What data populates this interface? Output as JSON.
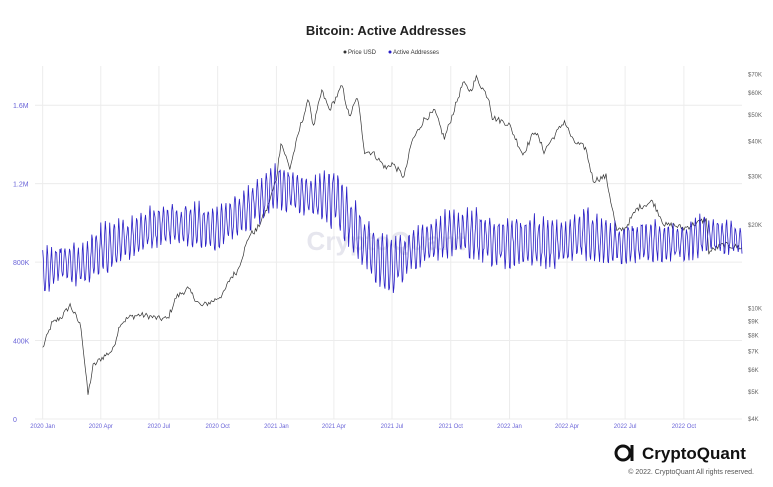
{
  "chart_data": {
    "type": "line",
    "title": "Bitcoin: Active Addresses",
    "legend": [
      {
        "name": "Price USD",
        "color": "#333333"
      },
      {
        "name": "Active Addresses",
        "color": "#2a1fc6"
      }
    ],
    "legend_position": "top-center",
    "grid": true,
    "x_ticks": [
      "2020 Jan",
      "2020 Apr",
      "2020 Jul",
      "2020 Oct",
      "2021 Jan",
      "2021 Apr",
      "2021 Jul",
      "2021 Oct",
      "2022 Jan",
      "2022 Apr",
      "2022 Jul",
      "2022 Oct"
    ],
    "y_left_ticks": [
      "0",
      "400K",
      "800K",
      "1.2M",
      "1.6M"
    ],
    "y_left_range": [
      0,
      1800000
    ],
    "y_right_ticks": [
      "$70K",
      "$60K",
      "$50K",
      "$40K",
      "$30K",
      "$20K",
      "$10K",
      "$9K",
      "$8K",
      "$7K",
      "$6K",
      "$5K",
      "$4K"
    ],
    "y_right_scale": "log",
    "y_right_range": [
      4000,
      75000
    ],
    "x_range": [
      "2019-12-20",
      "2022-12-31"
    ],
    "series": [
      {
        "name": "Price USD",
        "axis": "right",
        "color": "#333333",
        "points": [
          [
            "2020-01-01",
            7200
          ],
          [
            "2020-01-15",
            8800
          ],
          [
            "2020-02-01",
            9400
          ],
          [
            "2020-02-13",
            10300
          ],
          [
            "2020-03-01",
            8600
          ],
          [
            "2020-03-12",
            4900
          ],
          [
            "2020-03-20",
            6200
          ],
          [
            "2020-04-01",
            6600
          ],
          [
            "2020-04-20",
            7100
          ],
          [
            "2020-05-01",
            8800
          ],
          [
            "2020-05-15",
            9300
          ],
          [
            "2020-06-01",
            9500
          ],
          [
            "2020-06-15",
            9400
          ],
          [
            "2020-07-01",
            9200
          ],
          [
            "2020-07-15",
            9200
          ],
          [
            "2020-07-28",
            11000
          ],
          [
            "2020-08-15",
            11800
          ],
          [
            "2020-09-05",
            10200
          ],
          [
            "2020-09-25",
            10700
          ],
          [
            "2020-10-10",
            11300
          ],
          [
            "2020-10-21",
            12900
          ],
          [
            "2020-11-01",
            13700
          ],
          [
            "2020-11-20",
            18500
          ],
          [
            "2020-12-01",
            19200
          ],
          [
            "2020-12-17",
            22800
          ],
          [
            "2021-01-01",
            29300
          ],
          [
            "2021-01-08",
            40000
          ],
          [
            "2021-01-22",
            32000
          ],
          [
            "2021-02-08",
            46000
          ],
          [
            "2021-02-21",
            57000
          ],
          [
            "2021-02-28",
            45000
          ],
          [
            "2021-03-13",
            61000
          ],
          [
            "2021-03-25",
            52000
          ],
          [
            "2021-04-14",
            63500
          ],
          [
            "2021-04-25",
            49000
          ],
          [
            "2021-05-08",
            58000
          ],
          [
            "2021-05-19",
            37000
          ],
          [
            "2021-06-01",
            36500
          ],
          [
            "2021-06-22",
            32000
          ],
          [
            "2021-07-01",
            33500
          ],
          [
            "2021-07-20",
            29800
          ],
          [
            "2021-08-01",
            40000
          ],
          [
            "2021-08-20",
            48000
          ],
          [
            "2021-09-06",
            51500
          ],
          [
            "2021-09-21",
            41000
          ],
          [
            "2021-10-01",
            48000
          ],
          [
            "2021-10-20",
            65000
          ],
          [
            "2021-11-01",
            61000
          ],
          [
            "2021-11-10",
            68000
          ],
          [
            "2021-11-30",
            57000
          ],
          [
            "2021-12-05",
            49000
          ],
          [
            "2021-12-31",
            46300
          ],
          [
            "2022-01-22",
            36000
          ],
          [
            "2022-02-10",
            44000
          ],
          [
            "2022-02-24",
            37000
          ],
          [
            "2022-03-28",
            47500
          ],
          [
            "2022-04-11",
            40000
          ],
          [
            "2022-04-30",
            38000
          ],
          [
            "2022-05-12",
            29000
          ],
          [
            "2022-06-01",
            30000
          ],
          [
            "2022-06-18",
            19000
          ],
          [
            "2022-07-01",
            19500
          ],
          [
            "2022-07-20",
            23000
          ],
          [
            "2022-08-13",
            24400
          ],
          [
            "2022-09-01",
            20000
          ],
          [
            "2022-09-15",
            20000
          ],
          [
            "2022-10-01",
            19500
          ],
          [
            "2022-10-25",
            20500
          ],
          [
            "2022-11-05",
            21000
          ],
          [
            "2022-11-09",
            16000
          ],
          [
            "2022-12-01",
            17000
          ],
          [
            "2022-12-31",
            16600
          ]
        ]
      },
      {
        "name": "Active Addresses",
        "axis": "left",
        "color": "#2a1fc6",
        "envelope": [
          [
            "2020-01-01",
            600000,
            880000
          ],
          [
            "2020-02-01",
            680000,
            900000
          ],
          [
            "2020-03-01",
            640000,
            900000
          ],
          [
            "2020-04-01",
            700000,
            1000000
          ],
          [
            "2020-05-01",
            760000,
            1020000
          ],
          [
            "2020-06-01",
            830000,
            1060000
          ],
          [
            "2020-07-01",
            860000,
            1110000
          ],
          [
            "2020-08-01",
            870000,
            1110000
          ],
          [
            "2020-09-01",
            850000,
            1110000
          ],
          [
            "2020-10-01",
            840000,
            1080000
          ],
          [
            "2020-11-01",
            920000,
            1160000
          ],
          [
            "2020-12-01",
            960000,
            1220000
          ],
          [
            "2021-01-01",
            1040000,
            1330000
          ],
          [
            "2021-02-01",
            1040000,
            1260000
          ],
          [
            "2021-03-01",
            1000000,
            1240000
          ],
          [
            "2021-04-01",
            940000,
            1310000
          ],
          [
            "2021-05-01",
            830000,
            1130000
          ],
          [
            "2021-06-01",
            680000,
            980000
          ],
          [
            "2021-07-01",
            600000,
            920000
          ],
          [
            "2021-08-01",
            740000,
            980000
          ],
          [
            "2021-09-01",
            780000,
            1030000
          ],
          [
            "2021-10-01",
            800000,
            1080000
          ],
          [
            "2021-11-01",
            800000,
            1090000
          ],
          [
            "2021-12-01",
            760000,
            1060000
          ],
          [
            "2022-01-01",
            740000,
            1020000
          ],
          [
            "2022-02-01",
            760000,
            1050000
          ],
          [
            "2022-03-01",
            740000,
            1030000
          ],
          [
            "2022-04-01",
            760000,
            1020000
          ],
          [
            "2022-05-01",
            780000,
            1100000
          ],
          [
            "2022-06-01",
            750000,
            1020000
          ],
          [
            "2022-07-01",
            760000,
            1010000
          ],
          [
            "2022-08-01",
            790000,
            1020000
          ],
          [
            "2022-09-01",
            780000,
            1010000
          ],
          [
            "2022-10-01",
            790000,
            1000000
          ],
          [
            "2022-11-01",
            800000,
            1060000
          ],
          [
            "2022-12-01",
            820000,
            1030000
          ],
          [
            "2022-12-31",
            830000,
            980000
          ]
        ]
      }
    ]
  },
  "watermark": "CryptoQuant",
  "brand": {
    "name": "CryptoQuant",
    "copyright": "© 2022. CryptoQuant All rights reserved."
  }
}
